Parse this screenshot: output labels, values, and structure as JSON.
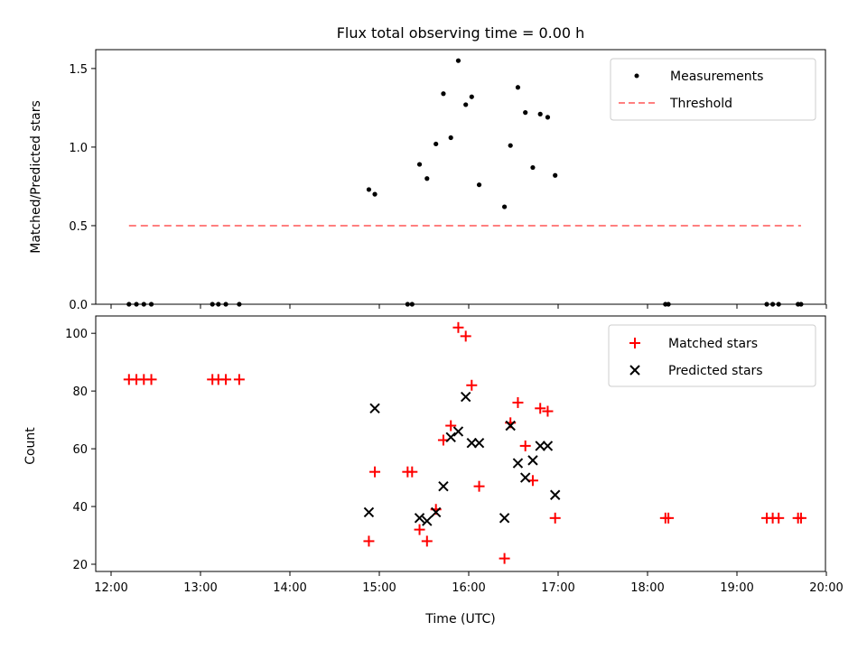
{
  "chart_data": [
    {
      "type": "scatter",
      "title": "Flux total observing time = 0.00 h",
      "xlabel": "",
      "ylabel": "Matched/Predicted stars",
      "ylim": [
        0,
        1.62
      ],
      "xlim": [
        "12:00",
        "20:00"
      ],
      "yticks": [
        0.0,
        0.5,
        1.0,
        1.5
      ],
      "ytick_labels": [
        "0.0",
        "0.5",
        "1.0",
        "1.5"
      ],
      "legend_position": "top-right",
      "series": [
        {
          "name": "Measurements",
          "marker": "dot",
          "color": "#000000",
          "points": [
            [
              "12:12",
              0
            ],
            [
              "12:17",
              0
            ],
            [
              "12:22",
              0
            ],
            [
              "12:27",
              0
            ],
            [
              "13:08",
              0
            ],
            [
              "13:12",
              0
            ],
            [
              "13:17",
              0
            ],
            [
              "13:26",
              0
            ],
            [
              "14:53",
              0.73
            ],
            [
              "14:57",
              0.7
            ],
            [
              "15:19",
              0
            ],
            [
              "15:22",
              0
            ],
            [
              "15:27",
              0.89
            ],
            [
              "15:32",
              0.8
            ],
            [
              "15:38",
              1.02
            ],
            [
              "15:43",
              1.34
            ],
            [
              "15:48",
              1.06
            ],
            [
              "15:53",
              1.55
            ],
            [
              "15:58",
              1.27
            ],
            [
              "16:02",
              1.32
            ],
            [
              "16:07",
              0.76
            ],
            [
              "16:24",
              0.62
            ],
            [
              "16:28",
              1.01
            ],
            [
              "16:33",
              1.38
            ],
            [
              "16:38",
              1.22
            ],
            [
              "16:43",
              0.87
            ],
            [
              "16:48",
              1.21
            ],
            [
              "16:53",
              1.19
            ],
            [
              "16:58",
              0.82
            ],
            [
              "18:12",
              0
            ],
            [
              "18:14",
              0
            ],
            [
              "19:20",
              0
            ],
            [
              "19:24",
              0
            ],
            [
              "19:28",
              0
            ],
            [
              "19:41",
              0
            ],
            [
              "19:43",
              0
            ]
          ]
        },
        {
          "name": "Threshold",
          "style": "dashed",
          "color": "#ff7f7f",
          "points": [
            [
              "12:12",
              0.5
            ],
            [
              "19:43",
              0.5
            ]
          ]
        }
      ]
    },
    {
      "type": "scatter",
      "title": "",
      "xlabel": "Time (UTC)",
      "ylabel": "Count",
      "ylim": [
        17.5,
        106
      ],
      "xlim": [
        "12:00",
        "20:00"
      ],
      "yticks": [
        20,
        40,
        60,
        80,
        100
      ],
      "ytick_labels": [
        "20",
        "40",
        "60",
        "80",
        "100"
      ],
      "xtick_labels": [
        "12:00",
        "13:00",
        "14:00",
        "15:00",
        "16:00",
        "17:00",
        "18:00",
        "19:00",
        "20:00"
      ],
      "legend_position": "top-right",
      "series": [
        {
          "name": "Matched stars",
          "marker": "plus",
          "color": "#ff0000",
          "points": [
            [
              "12:12",
              84
            ],
            [
              "12:17",
              84
            ],
            [
              "12:22",
              84
            ],
            [
              "12:27",
              84
            ],
            [
              "13:08",
              84
            ],
            [
              "13:12",
              84
            ],
            [
              "13:17",
              84
            ],
            [
              "13:26",
              84
            ],
            [
              "14:53",
              28
            ],
            [
              "14:57",
              52
            ],
            [
              "15:19",
              52
            ],
            [
              "15:22",
              52
            ],
            [
              "15:27",
              32
            ],
            [
              "15:32",
              28
            ],
            [
              "15:38",
              39
            ],
            [
              "15:43",
              63
            ],
            [
              "15:48",
              68
            ],
            [
              "15:53",
              102
            ],
            [
              "15:58",
              99
            ],
            [
              "16:02",
              82
            ],
            [
              "16:07",
              47
            ],
            [
              "16:24",
              22
            ],
            [
              "16:28",
              69
            ],
            [
              "16:33",
              76
            ],
            [
              "16:38",
              61
            ],
            [
              "16:43",
              49
            ],
            [
              "16:48",
              74
            ],
            [
              "16:53",
              73
            ],
            [
              "16:58",
              36
            ],
            [
              "18:12",
              36
            ],
            [
              "18:14",
              36
            ],
            [
              "19:20",
              36
            ],
            [
              "19:24",
              36
            ],
            [
              "19:28",
              36
            ],
            [
              "19:41",
              36
            ],
            [
              "19:43",
              36
            ]
          ]
        },
        {
          "name": "Predicted stars",
          "marker": "x",
          "color": "#000000",
          "points": [
            [
              "14:53",
              38
            ],
            [
              "14:57",
              74
            ],
            [
              "15:27",
              36
            ],
            [
              "15:32",
              35
            ],
            [
              "15:38",
              38
            ],
            [
              "15:43",
              47
            ],
            [
              "15:48",
              64
            ],
            [
              "15:53",
              66
            ],
            [
              "15:58",
              78
            ],
            [
              "16:02",
              62
            ],
            [
              "16:07",
              62
            ],
            [
              "16:24",
              36
            ],
            [
              "16:28",
              68
            ],
            [
              "16:33",
              55
            ],
            [
              "16:38",
              50
            ],
            [
              "16:43",
              56
            ],
            [
              "16:48",
              61
            ],
            [
              "16:53",
              61
            ],
            [
              "16:58",
              44
            ]
          ]
        }
      ]
    }
  ]
}
